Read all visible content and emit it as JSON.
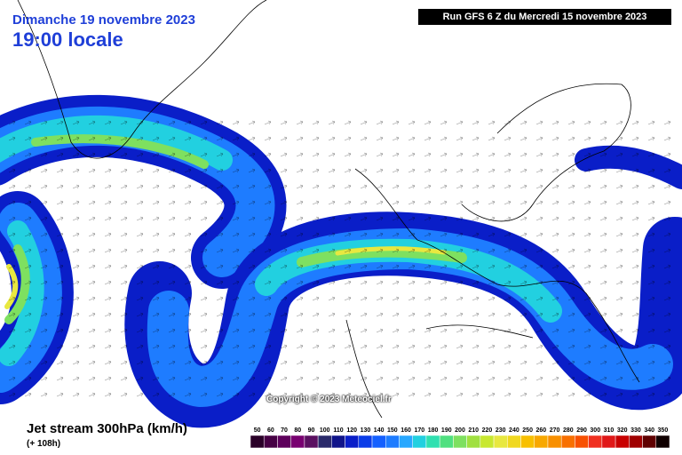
{
  "header": {
    "date": "Dimanche 19 novembre 2023",
    "time": "19:00 locale",
    "run": "Run GFS 6 Z du Mercredi 15 novembre 2023"
  },
  "copyright": "Copyright © 2023 Meteociel.fr",
  "legend": {
    "title": "Jet stream 300hPa (km/h)",
    "lead_time": "(+ 108h)",
    "values": [
      50,
      60,
      70,
      80,
      90,
      100,
      110,
      120,
      130,
      140,
      150,
      160,
      170,
      180,
      190,
      200,
      210,
      220,
      230,
      240,
      250,
      260,
      270,
      280,
      290,
      300,
      310,
      320,
      330,
      340,
      350
    ],
    "colors": [
      "#2a0028",
      "#460044",
      "#5e005c",
      "#780070",
      "#5a1060",
      "#2a2a6a",
      "#10148a",
      "#0a1ec8",
      "#0a3ce8",
      "#1460ff",
      "#1e7cff",
      "#28a8ff",
      "#22d0e0",
      "#30e0b0",
      "#50e080",
      "#7ee060",
      "#a0e040",
      "#c8e830",
      "#e8e840",
      "#f0d820",
      "#f8c000",
      "#f8a800",
      "#f89000",
      "#f87000",
      "#f85000",
      "#f03020",
      "#e01818",
      "#c80000",
      "#a00000",
      "#600000",
      "#100000"
    ]
  }
}
